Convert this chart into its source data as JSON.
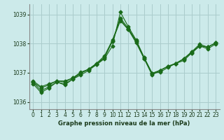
{
  "xlabel": "Graphe pression niveau de la mer (hPa)",
  "bg_color": "#cceaea",
  "grid_color": "#aacccc",
  "line_color": "#1a6b1a",
  "xlim": [
    -0.5,
    23.5
  ],
  "ylim": [
    1035.75,
    1039.35
  ],
  "yticks": [
    1036,
    1037,
    1038,
    1039
  ],
  "xticks": [
    0,
    1,
    2,
    3,
    4,
    5,
    6,
    7,
    8,
    9,
    10,
    11,
    12,
    13,
    14,
    15,
    16,
    17,
    18,
    19,
    20,
    21,
    22,
    23
  ],
  "series": [
    [
      1036.68,
      1036.38,
      1036.52,
      1036.68,
      1036.62,
      1036.78,
      1036.98,
      1037.12,
      1037.32,
      1037.58,
      1038.12,
      1038.82,
      1038.48,
      1038.08,
      1037.52,
      1036.98,
      1037.08,
      1037.22,
      1037.32,
      1037.48,
      1037.72,
      1037.98,
      1037.88,
      1038.02
    ],
    [
      1036.72,
      1036.52,
      1036.62,
      1036.72,
      1036.72,
      1036.82,
      1037.02,
      1037.12,
      1037.28,
      1037.48,
      1037.92,
      1039.08,
      1038.58,
      1038.12,
      1037.52,
      1036.98,
      1037.02,
      1037.18,
      1037.32,
      1037.48,
      1037.68,
      1037.92,
      1037.88,
      1038.02
    ],
    [
      1036.62,
      1036.32,
      1036.48,
      1036.68,
      1036.58,
      1036.78,
      1036.92,
      1037.08,
      1037.28,
      1037.52,
      1038.08,
      1038.78,
      1038.48,
      1038.02,
      1037.48,
      1036.92,
      1037.08,
      1037.22,
      1037.32,
      1037.42,
      1037.68,
      1037.92,
      1037.82,
      1037.98
    ],
    [
      1036.68,
      1036.48,
      1036.58,
      1036.72,
      1036.68,
      1036.82,
      1036.98,
      1037.12,
      1037.32,
      1037.52,
      1038.08,
      1038.88,
      1038.52,
      1038.08,
      1037.48,
      1036.98,
      1037.08,
      1037.22,
      1037.32,
      1037.48,
      1037.72,
      1037.92,
      1037.88,
      1038.02
    ]
  ],
  "marker": "D",
  "markersize": 2.5,
  "linewidth": 0.8,
  "tick_fontsize": 5.5,
  "xlabel_fontsize": 6.0,
  "xlabel_color": "#1a3a1a",
  "tick_color": "#1a3a1a",
  "spine_color": "#888888"
}
